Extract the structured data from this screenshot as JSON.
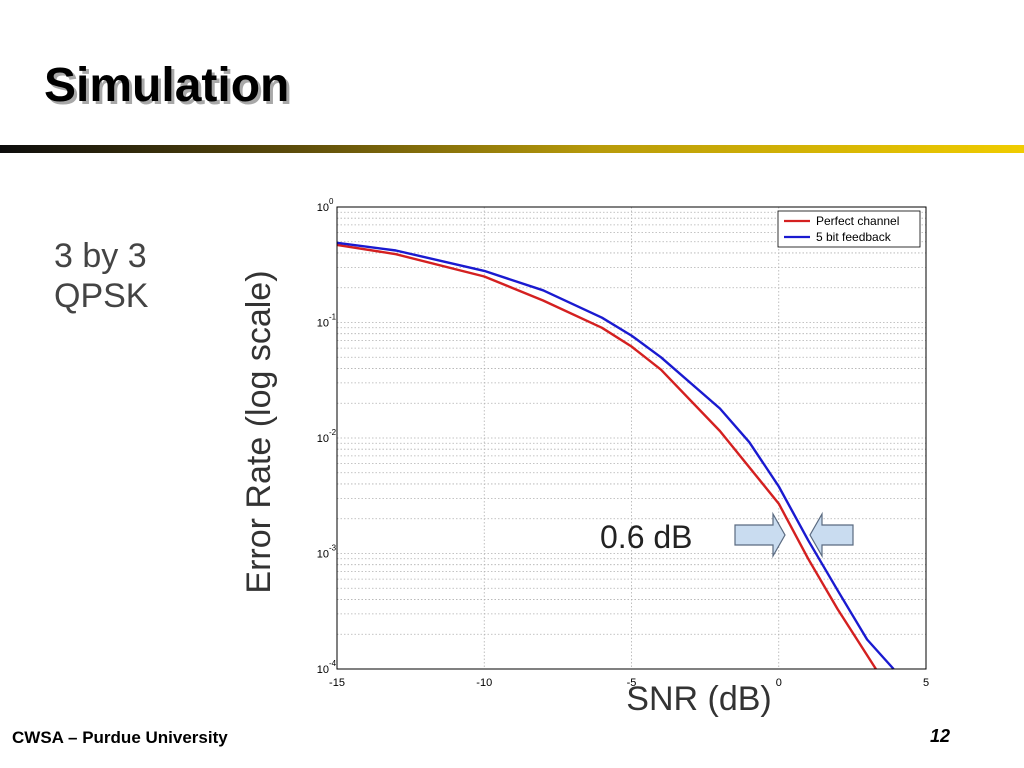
{
  "slide": {
    "title": "Simulation",
    "side_text": [
      "3 by 3",
      "QPSK"
    ],
    "footer_left": "CWSA – Purdue University",
    "page_number": "12"
  },
  "colors": {
    "rule_start": "#0c0c0c",
    "rule_end": "#f0cc00",
    "perfect_channel": "#d42020",
    "feedback": "#1a1ad0",
    "arrow_fill": "#c9dcf0",
    "arrow_stroke": "#5a6a80"
  },
  "chart_data": {
    "type": "line",
    "title": "",
    "xlabel": "SNR (dB)",
    "ylabel": "Error Rate (log scale)",
    "xlim": [
      -15,
      5
    ],
    "ylim": [
      0.0001,
      1
    ],
    "yscale": "log",
    "grid": true,
    "legend_position": "top-right",
    "x_ticks": [
      -15,
      -10,
      -5,
      0,
      5
    ],
    "y_ticks": [
      {
        "base": "10",
        "exp": "0",
        "value": 1
      },
      {
        "base": "10",
        "exp": "-1",
        "value": 0.1
      },
      {
        "base": "10",
        "exp": "-2",
        "value": 0.01
      },
      {
        "base": "10",
        "exp": "-3",
        "value": 0.001
      },
      {
        "base": "10",
        "exp": "-4",
        "value": 0.0001
      }
    ],
    "series": [
      {
        "name": "Perfect channel",
        "color": "#d42020",
        "x": [
          -15,
          -13,
          -10,
          -8,
          -6,
          -5,
          -4,
          -2,
          0,
          1,
          2,
          3.3
        ],
        "y": [
          0.47,
          0.39,
          0.25,
          0.155,
          0.09,
          0.062,
          0.039,
          0.0115,
          0.0027,
          0.0009,
          0.00033,
          0.0001
        ]
      },
      {
        "name": "5 bit feedback",
        "color": "#1a1ad0",
        "x": [
          -15,
          -13,
          -10,
          -8,
          -6,
          -5,
          -4,
          -2,
          -1,
          0,
          1,
          2,
          3,
          3.9
        ],
        "y": [
          0.49,
          0.42,
          0.28,
          0.19,
          0.11,
          0.077,
          0.05,
          0.018,
          0.0092,
          0.0038,
          0.0013,
          0.00048,
          0.00018,
          0.0001
        ]
      }
    ],
    "annotation": {
      "text": "0.6 dB",
      "x": 0.3,
      "y": 0.0016
    }
  }
}
